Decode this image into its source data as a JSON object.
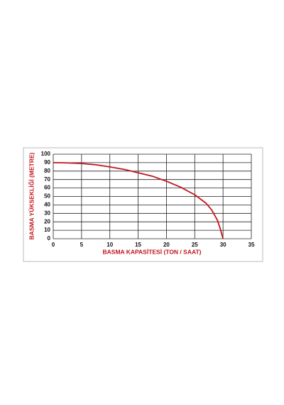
{
  "chart_data": {
    "type": "line",
    "x_label": "BASMA KAPASİTESİ (TON / SAAT)",
    "y_label": "BASMA YÜKSEKLİĞİ (METRE)",
    "x": [
      0,
      2.5,
      5,
      7.5,
      10,
      12.5,
      15,
      17.5,
      20,
      22.5,
      25,
      27,
      28,
      29,
      29.5,
      30
    ],
    "series": [
      {
        "color": "#c0151b",
        "values": [
          90,
          89.7,
          89,
          87.5,
          85,
          82,
          78,
          74,
          68,
          61,
          52,
          42,
          34,
          22,
          12,
          0
        ]
      }
    ],
    "xlim": [
      0,
      35
    ],
    "xticks": [
      0,
      5,
      10,
      15,
      20,
      25,
      30,
      35
    ],
    "ylim": [
      0,
      100
    ],
    "yticks": [
      0,
      10,
      20,
      30,
      40,
      50,
      60,
      70,
      80,
      90,
      100
    ],
    "grid": true
  }
}
